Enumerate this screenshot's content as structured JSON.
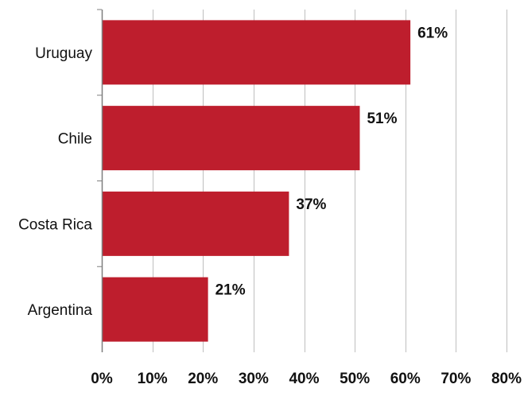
{
  "chart_data": {
    "type": "bar",
    "orientation": "horizontal",
    "title": "",
    "xlabel": "",
    "ylabel": "",
    "categories": [
      "Uruguay",
      "Chile",
      "Costa Rica",
      "Argentina"
    ],
    "values": [
      61,
      51,
      37,
      21
    ],
    "data_labels": [
      "61%",
      "51%",
      "37%",
      "21%"
    ],
    "xlim": [
      0,
      80
    ],
    "x_ticks": [
      0,
      10,
      20,
      30,
      40,
      50,
      60,
      70,
      80
    ],
    "x_tick_labels": [
      "0%",
      "10%",
      "20%",
      "30%",
      "40%",
      "50%",
      "60%",
      "70%",
      "80%"
    ],
    "grid": "vertical",
    "legend": "none",
    "bar_color": "#be1e2d",
    "grid_color": "#bfbfbf",
    "axis_color": "#7f7f7f"
  }
}
